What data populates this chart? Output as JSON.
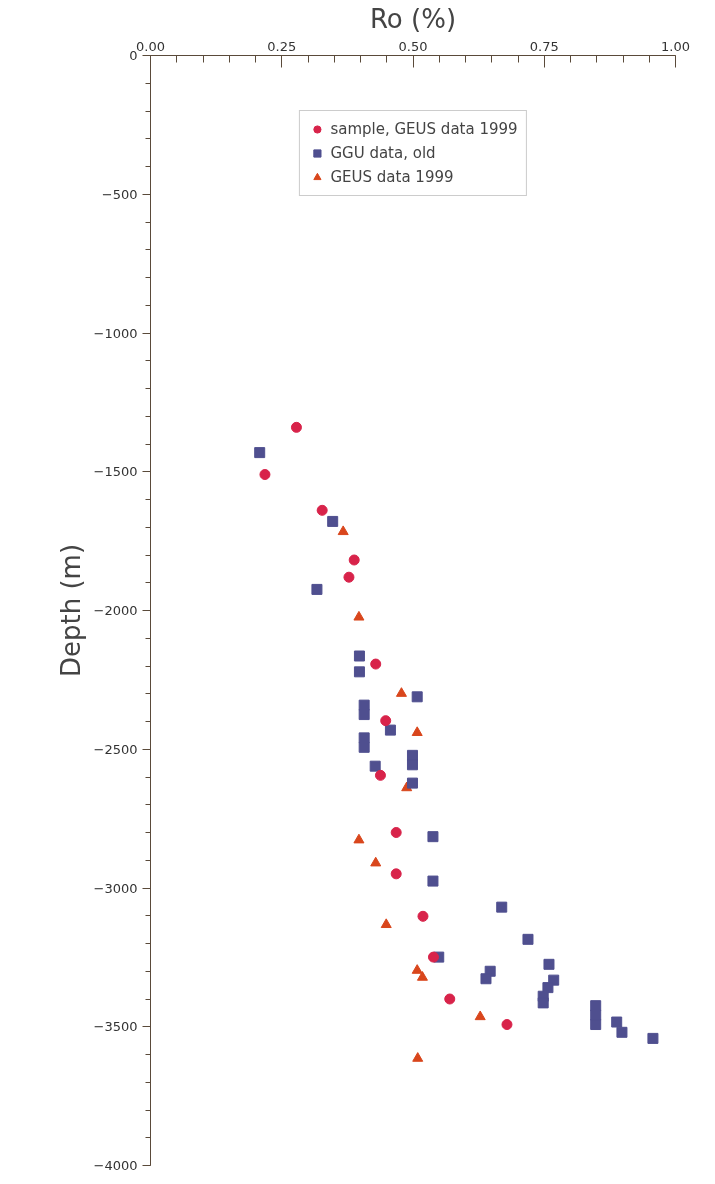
{
  "chart_data": {
    "type": "scatter",
    "xlabel": "Ro (%)",
    "ylabel": "Depth (m)",
    "xlim": [
      0,
      1
    ],
    "ylim": [
      -4000,
      0
    ],
    "xticks": [
      {
        "value": 0,
        "label": "0.00"
      },
      {
        "value": 0.25,
        "label": "0.25"
      },
      {
        "value": 0.5,
        "label": "0.50"
      },
      {
        "value": 0.75,
        "label": "0.75"
      },
      {
        "value": 1,
        "label": "1.00"
      }
    ],
    "yticks": [
      -4000,
      -3500,
      -3000,
      -2500,
      -2000,
      -1500,
      -1000,
      -500,
      0
    ],
    "grid": false,
    "legend": "top",
    "series": [
      {
        "name": "sample, GEUS data 1999",
        "color": "#d8234a",
        "marker": "circle",
        "x": [
          0.278,
          0.218,
          0.327,
          0.388,
          0.378,
          0.429,
          0.448,
          0.438,
          0.468,
          0.468,
          0.519,
          0.539,
          0.57,
          0.679
        ],
        "values": [
          -1340,
          -1510,
          -1639,
          -1818,
          -1880,
          -2193,
          -2397,
          -2594,
          -2800,
          -2949,
          -3102,
          -3249,
          -3400,
          -3492
        ]
      },
      {
        "name": "GGU data, old",
        "color": "#4f4f8f",
        "marker": "square",
        "x": [
          0.208,
          0.347,
          0.317,
          0.398,
          0.398,
          0.508,
          0.407,
          0.407,
          0.457,
          0.407,
          0.407,
          0.499,
          0.499,
          0.428,
          0.499,
          0.538,
          0.538,
          0.669,
          0.719,
          0.549,
          0.647,
          0.639,
          0.759,
          0.768,
          0.757,
          0.748,
          0.748,
          0.848,
          0.848,
          0.848,
          0.888,
          0.898,
          0.957
        ],
        "values": [
          -1431,
          -1679,
          -1924,
          -2164,
          -2221,
          -2311,
          -2341,
          -2375,
          -2431,
          -2459,
          -2493,
          -2522,
          -2556,
          -2561,
          -2622,
          -2815,
          -2975,
          -3069,
          -3185,
          -3249,
          -3300,
          -3327,
          -3275,
          -3332,
          -3359,
          -3390,
          -3414,
          -3424,
          -3458,
          -3492,
          -3483,
          -3520,
          -3542
        ]
      },
      {
        "name": "GEUS data 1999",
        "color": "#d9461c",
        "marker": "triangle",
        "x": [
          0.367,
          0.397,
          0.478,
          0.508,
          0.488,
          0.397,
          0.429,
          0.449,
          0.508,
          0.518,
          0.628,
          0.509
        ],
        "values": [
          -1716,
          -2024,
          -2299,
          -2440,
          -2639,
          -2827,
          -2910,
          -3132,
          -3297,
          -3322,
          -3464,
          -3614
        ]
      }
    ]
  }
}
